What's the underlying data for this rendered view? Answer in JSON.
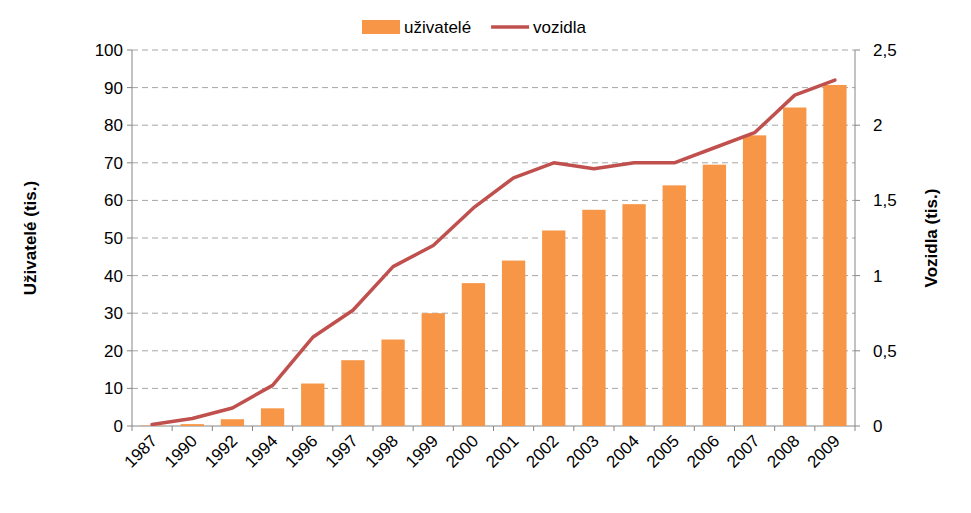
{
  "chart_data": {
    "type": "bar",
    "categories": [
      "1987",
      "1990",
      "1992",
      "1994",
      "1996",
      "1997",
      "1998",
      "1999",
      "2000",
      "2001",
      "2002",
      "2003",
      "2004",
      "2005",
      "2006",
      "2007",
      "2008",
      "2009"
    ],
    "y_label": "Uživatelé (tis.)",
    "y2_label": "Vozidla (tis.)",
    "ylim": [
      0,
      100
    ],
    "yticks": [
      0,
      10,
      20,
      30,
      40,
      50,
      60,
      70,
      80,
      90,
      100
    ],
    "y2lim": [
      0,
      2.5
    ],
    "y2ticks": [
      0,
      {
        "value": 0.5,
        "label": "0,5"
      },
      1,
      {
        "value": 1.5,
        "label": "1,5"
      },
      2,
      {
        "value": 2.5,
        "label": "2,5"
      }
    ],
    "grid": true,
    "legend": "top",
    "series": [
      {
        "name": "uživatelé",
        "type": "bar",
        "color": "#f79646",
        "values": [
          0.1,
          0.5,
          1.8,
          4.7,
          11.3,
          17.5,
          23,
          30,
          38,
          44,
          52,
          57.5,
          59,
          64,
          69.5,
          77.3,
          84.7,
          90.7
        ]
      },
      {
        "name": "vozidla",
        "type": "line",
        "axis": "y2",
        "color": "#c0504d",
        "values": [
          0.01,
          0.05,
          0.12,
          0.27,
          0.59,
          0.77,
          1.06,
          1.2,
          1.45,
          1.65,
          1.75,
          1.71,
          1.75,
          1.75,
          1.85,
          1.95,
          2.2,
          2.3
        ]
      }
    ]
  }
}
